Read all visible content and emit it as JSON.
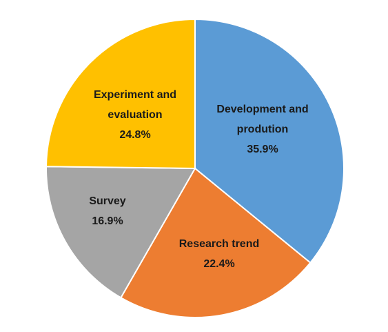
{
  "chart_data": {
    "type": "pie",
    "start": "top, clockwise",
    "slices": [
      {
        "name": "Development and produtions",
        "label_lines": [
          "Development and",
          "prodution"
        ],
        "value": 35.9,
        "value_label": "35.9%",
        "color": "#5B9BD5"
      },
      {
        "name": "Research trend",
        "label_lines": [
          "Research trend"
        ],
        "value": 22.4,
        "value_label": "22.4%",
        "color": "#ED7D31"
      },
      {
        "name": "Survey",
        "label_lines": [
          "Survey"
        ],
        "value": 16.9,
        "value_label": "16.9%",
        "color": "#A5A5A5"
      },
      {
        "name": "Experiment and evaluation",
        "label_lines": [
          "Experiment and",
          "evaluation"
        ],
        "value": 24.8,
        "value_label": "24.8%",
        "color": "#FFC000"
      }
    ]
  }
}
